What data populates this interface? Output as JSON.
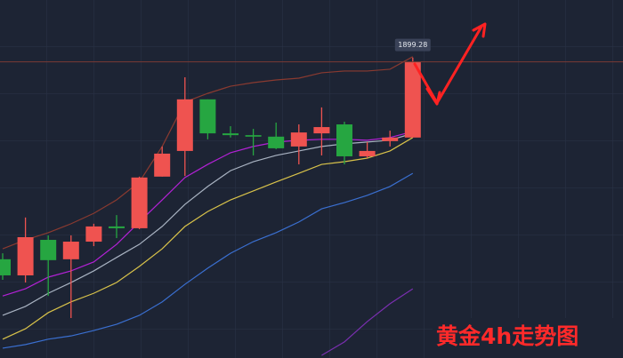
{
  "chart_data": {
    "type": "candlestick",
    "title": "黄金4h走势图",
    "ylim": [
      1800,
      1920
    ],
    "up_color": "#ef5350",
    "down_color": "#26a641",
    "open": [
      1833.1,
      1827.7,
      1839.6,
      1833.1,
      1839.0,
      1844.1,
      1843.5,
      1860.8,
      1869.4,
      1886.7,
      1875.3,
      1874.7,
      1874.2,
      1870.9,
      1875.3,
      1878.3,
      1867.6,
      1872.7,
      1873.9
    ],
    "high": [
      1835.1,
      1847.1,
      1841.1,
      1841.1,
      1845.0,
      1847.9,
      1860.8,
      1870.9,
      1894.1,
      1886.7,
      1877.7,
      1876.8,
      1878.9,
      1878.3,
      1884.0,
      1879.2,
      1872.4,
      1876.2,
      1900.7
    ],
    "low": [
      1826.2,
      1825.3,
      1820.8,
      1813.4,
      1837.5,
      1840.2,
      1843.2,
      1860.8,
      1861.0,
      1873.3,
      1873.9,
      1867.9,
      1870.0,
      1864.9,
      1867.9,
      1864.9,
      1867.0,
      1870.9,
      1873.9
    ],
    "close": [
      1827.7,
      1840.5,
      1832.8,
      1839.0,
      1844.1,
      1843.5,
      1860.5,
      1868.5,
      1886.7,
      1875.3,
      1874.7,
      1874.2,
      1870.3,
      1875.6,
      1877.4,
      1867.6,
      1869.4,
      1873.9,
      1899.28
    ],
    "lines": [
      {
        "color": "#8a3a30",
        "values": [
          1836.6,
          1839.6,
          1842.0,
          1845.0,
          1848.5,
          1853.0,
          1859.0,
          1870.9,
          1885.8,
          1888.7,
          1891.1,
          1892.3,
          1893.2,
          1893.8,
          1895.6,
          1896.2,
          1896.2,
          1896.8,
          1901.0
        ]
      },
      {
        "color": "#b321d6",
        "values": [
          1820.8,
          1823.2,
          1827.1,
          1829.2,
          1832.2,
          1838.1,
          1845.6,
          1853.0,
          1860.5,
          1864.9,
          1868.8,
          1870.9,
          1872.4,
          1873.0,
          1873.3,
          1873.3,
          1873.0,
          1873.9,
          1875.9
        ]
      },
      {
        "color": "#a9b3c2",
        "values": [
          1814.3,
          1817.3,
          1821.7,
          1825.3,
          1829.2,
          1833.7,
          1838.1,
          1844.1,
          1851.5,
          1857.5,
          1862.8,
          1865.8,
          1867.9,
          1869.4,
          1870.9,
          1871.8,
          1872.4,
          1873.0,
          1875.3
        ]
      },
      {
        "color": "#d8c24a",
        "values": [
          1806.3,
          1809.8,
          1815.2,
          1818.8,
          1821.7,
          1825.3,
          1830.7,
          1836.6,
          1844.1,
          1849.1,
          1853.0,
          1856.0,
          1859.0,
          1861.9,
          1864.9,
          1865.8,
          1867.0,
          1869.4,
          1873.9
        ]
      },
      {
        "color": "#3a6fd0",
        "values": [
          1803.3,
          1804.5,
          1806.3,
          1807.4,
          1809.2,
          1811.3,
          1814.3,
          1818.8,
          1824.7,
          1830.1,
          1835.1,
          1839.0,
          1842.0,
          1845.6,
          1850.0,
          1852.1,
          1854.5,
          1857.5,
          1861.9
        ]
      },
      {
        "color": "#7a2fb0",
        "values": [
          null,
          null,
          null,
          null,
          null,
          null,
          null,
          null,
          null,
          null,
          null,
          null,
          null,
          null,
          1800.9,
          1805.4,
          1812.2,
          1818.2,
          1823.2
        ]
      }
    ]
  }
}
